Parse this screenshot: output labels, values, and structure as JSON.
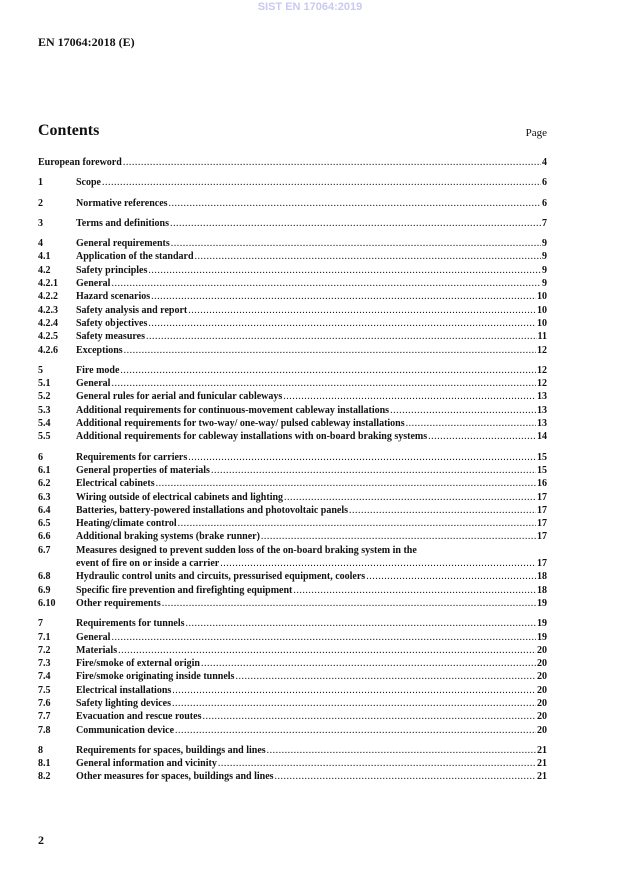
{
  "watermark": "SIST EN 17064:2019",
  "header": "EN 17064:2018 (E)",
  "contents_title": "Contents",
  "page_label": "Page",
  "page_number": "2",
  "toc": [
    [
      {
        "num": "",
        "title": "European foreword",
        "page": "4"
      }
    ],
    [
      {
        "num": "1",
        "title": "Scope",
        "page": "6"
      }
    ],
    [
      {
        "num": "2",
        "title": "Normative references",
        "page": "6"
      }
    ],
    [
      {
        "num": "3",
        "title": "Terms and definitions",
        "page": "7"
      }
    ],
    [
      {
        "num": "4",
        "title": "General requirements",
        "page": "9"
      },
      {
        "num": "4.1",
        "title": "Application of the standard",
        "page": "9"
      },
      {
        "num": "4.2",
        "title": "Safety principles",
        "page": "9"
      },
      {
        "num": "4.2.1",
        "title": "General",
        "page": "9"
      },
      {
        "num": "4.2.2",
        "title": "Hazard scenarios",
        "page": "10"
      },
      {
        "num": "4.2.3",
        "title": "Safety analysis and report",
        "page": "10"
      },
      {
        "num": "4.2.4",
        "title": "Safety objectives",
        "page": "10"
      },
      {
        "num": "4.2.5",
        "title": "Safety measures",
        "page": "11"
      },
      {
        "num": "4.2.6",
        "title": "Exceptions",
        "page": "12"
      }
    ],
    [
      {
        "num": "5",
        "title": "Fire mode",
        "page": "12"
      },
      {
        "num": "5.1",
        "title": "General",
        "page": "12"
      },
      {
        "num": "5.2",
        "title": "General rules for aerial and funicular cableways",
        "page": "13"
      },
      {
        "num": "5.3",
        "title": "Additional requirements for continuous-movement cableway installations",
        "page": "13"
      },
      {
        "num": "5.4",
        "title": "Additional requirements for two-way/ one-way/ pulsed cableway installations",
        "page": "13"
      },
      {
        "num": "5.5",
        "title": "Additional requirements for cableway installations with on-board braking systems",
        "page": "14"
      }
    ],
    [
      {
        "num": "6",
        "title": "Requirements for carriers",
        "page": "15"
      },
      {
        "num": "6.1",
        "title": "General properties of materials",
        "page": "15"
      },
      {
        "num": "6.2",
        "title": "Electrical cabinets",
        "page": "16"
      },
      {
        "num": "6.3",
        "title": "Wiring outside of electrical cabinets and lighting",
        "page": "17"
      },
      {
        "num": "6.4",
        "title": "Batteries, battery-powered installations and photovoltaic panels",
        "page": "17"
      },
      {
        "num": "6.5",
        "title": "Heating/climate control",
        "page": "17"
      },
      {
        "num": "6.6",
        "title": "Additional braking systems (brake runner)",
        "page": "17"
      },
      {
        "num": "6.7",
        "title": "Measures designed to prevent sudden loss of the on-board braking system in the",
        "title_cont": "event of fire on or inside a carrier",
        "page": "17"
      },
      {
        "num": "6.8",
        "title": "Hydraulic control units and circuits, pressurised equipment, coolers",
        "page": "18"
      },
      {
        "num": "6.9",
        "title": "Specific fire prevention and firefighting equipment",
        "page": "18"
      },
      {
        "num": "6.10",
        "title": "Other requirements",
        "page": "19"
      }
    ],
    [
      {
        "num": "7",
        "title": "Requirements for tunnels",
        "page": "19"
      },
      {
        "num": "7.1",
        "title": "General",
        "page": "19"
      },
      {
        "num": "7.2",
        "title": "Materials",
        "page": "20"
      },
      {
        "num": "7.3",
        "title": "Fire/smoke of external origin",
        "page": "20"
      },
      {
        "num": "7.4",
        "title": "Fire/smoke originating inside tunnels",
        "page": "20"
      },
      {
        "num": "7.5",
        "title": "Electrical installations",
        "page": "20"
      },
      {
        "num": "7.6",
        "title": "Safety lighting devices",
        "page": "20"
      },
      {
        "num": "7.7",
        "title": "Evacuation and rescue routes",
        "page": "20"
      },
      {
        "num": "7.8",
        "title": "Communication device",
        "page": "20"
      }
    ],
    [
      {
        "num": "8",
        "title": "Requirements for spaces, buildings and lines",
        "page": "21"
      },
      {
        "num": "8.1",
        "title": "General information and vicinity",
        "page": "21"
      },
      {
        "num": "8.2",
        "title": "Other measures for spaces, buildings and lines",
        "page": "21"
      }
    ]
  ]
}
